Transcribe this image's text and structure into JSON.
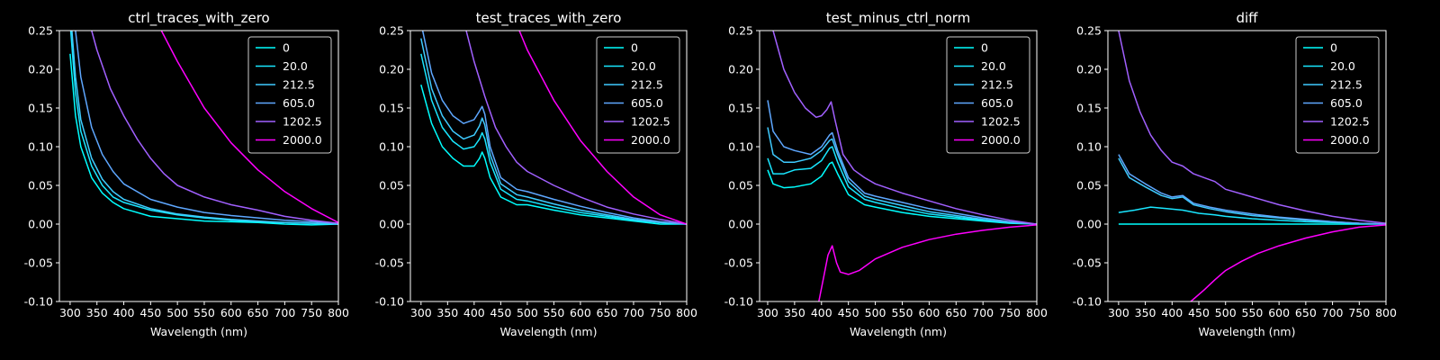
{
  "figure": {
    "background": "#000000",
    "foreground": "#ffffff"
  },
  "chart_data": [
    {
      "type": "line",
      "title": "ctrl_traces_with_zero",
      "xlabel": "Wavelength (nm)",
      "ylabel": "",
      "xlim": [
        280,
        800
      ],
      "ylim": [
        -0.1,
        0.25
      ],
      "xticks": [
        300,
        350,
        400,
        450,
        500,
        550,
        600,
        650,
        700,
        750,
        800
      ],
      "yticks": [
        -0.1,
        -0.05,
        0.0,
        0.05,
        0.1,
        0.15,
        0.2,
        0.25
      ],
      "legend": "top-right",
      "series": [
        {
          "name": "0",
          "color": "#00ffff",
          "x": [
            300,
            310,
            320,
            340,
            360,
            380,
            400,
            450,
            500,
            550,
            600,
            650,
            700,
            750,
            800
          ],
          "y": [
            0.22,
            0.14,
            0.1,
            0.06,
            0.04,
            0.028,
            0.02,
            0.01,
            0.007,
            0.004,
            0.003,
            0.002,
            0.0,
            -0.001,
            0.0
          ]
        },
        {
          "name": "20.0",
          "color": "#19e6ff",
          "x": [
            300,
            310,
            320,
            340,
            360,
            380,
            400,
            450,
            500,
            550,
            600,
            650,
            700,
            750,
            800
          ],
          "y": [
            0.26,
            0.17,
            0.12,
            0.075,
            0.05,
            0.035,
            0.028,
            0.018,
            0.012,
            0.008,
            0.005,
            0.003,
            0.002,
            0.001,
            0.0
          ]
        },
        {
          "name": "212.5",
          "color": "#3fcbff",
          "x": [
            300,
            310,
            320,
            340,
            360,
            380,
            400,
            450,
            500,
            550,
            600,
            650,
            700,
            750,
            800
          ],
          "y": [
            0.28,
            0.19,
            0.135,
            0.085,
            0.058,
            0.042,
            0.032,
            0.02,
            0.013,
            0.009,
            0.006,
            0.004,
            0.002,
            0.001,
            0.0
          ]
        },
        {
          "name": "605.0",
          "color": "#5ea7ff",
          "x": [
            300,
            310,
            320,
            340,
            360,
            380,
            400,
            450,
            500,
            550,
            600,
            650,
            700,
            750,
            800
          ],
          "y": [
            0.35,
            0.25,
            0.19,
            0.125,
            0.09,
            0.068,
            0.052,
            0.032,
            0.022,
            0.015,
            0.011,
            0.008,
            0.005,
            0.003,
            0.001
          ]
        },
        {
          "name": "1202.5",
          "color": "#a160ff",
          "x": [
            340,
            350,
            375,
            400,
            425,
            450,
            475,
            500,
            550,
            600,
            650,
            700,
            750,
            800
          ],
          "y": [
            0.25,
            0.225,
            0.175,
            0.14,
            0.11,
            0.085,
            0.065,
            0.05,
            0.035,
            0.025,
            0.018,
            0.01,
            0.005,
            0.001
          ]
        },
        {
          "name": "2000.0",
          "color": "#ff00ff",
          "x": [
            470,
            500,
            550,
            600,
            650,
            700,
            750,
            800
          ],
          "y": [
            0.25,
            0.21,
            0.15,
            0.105,
            0.07,
            0.042,
            0.02,
            0.002
          ]
        }
      ]
    },
    {
      "type": "line",
      "title": "test_traces_with_zero",
      "xlabel": "Wavelength (nm)",
      "ylabel": "",
      "xlim": [
        280,
        800
      ],
      "ylim": [
        -0.1,
        0.25
      ],
      "xticks": [
        300,
        350,
        400,
        450,
        500,
        550,
        600,
        650,
        700,
        750,
        800
      ],
      "yticks": [
        -0.1,
        -0.05,
        0.0,
        0.05,
        0.1,
        0.15,
        0.2,
        0.25
      ],
      "legend": "top-right",
      "series": [
        {
          "name": "0",
          "color": "#00ffff",
          "x": [
            300,
            320,
            340,
            360,
            380,
            400,
            410,
            415,
            420,
            430,
            450,
            480,
            500,
            550,
            600,
            650,
            700,
            750,
            800
          ],
          "y": [
            0.18,
            0.13,
            0.1,
            0.085,
            0.075,
            0.075,
            0.085,
            0.093,
            0.085,
            0.06,
            0.035,
            0.025,
            0.025,
            0.018,
            0.012,
            0.008,
            0.004,
            0.0,
            0.0
          ]
        },
        {
          "name": "20.0",
          "color": "#19e6ff",
          "x": [
            300,
            320,
            340,
            360,
            380,
            400,
            410,
            415,
            420,
            430,
            450,
            480,
            500,
            550,
            600,
            650,
            700,
            750,
            800
          ],
          "y": [
            0.22,
            0.16,
            0.125,
            0.107,
            0.097,
            0.1,
            0.11,
            0.118,
            0.11,
            0.08,
            0.045,
            0.032,
            0.03,
            0.022,
            0.015,
            0.01,
            0.005,
            0.002,
            0.0
          ]
        },
        {
          "name": "212.5",
          "color": "#3fcbff",
          "x": [
            300,
            320,
            340,
            360,
            380,
            400,
            410,
            415,
            420,
            430,
            450,
            480,
            500,
            550,
            600,
            650,
            700,
            750,
            800
          ],
          "y": [
            0.24,
            0.175,
            0.14,
            0.12,
            0.11,
            0.115,
            0.127,
            0.137,
            0.128,
            0.09,
            0.052,
            0.038,
            0.035,
            0.026,
            0.018,
            0.012,
            0.006,
            0.002,
            0.0
          ]
        },
        {
          "name": "605.0",
          "color": "#5ea7ff",
          "x": [
            300,
            320,
            340,
            360,
            380,
            400,
            410,
            415,
            420,
            430,
            450,
            480,
            500,
            550,
            600,
            650,
            700,
            750,
            800
          ],
          "y": [
            0.26,
            0.195,
            0.16,
            0.14,
            0.13,
            0.135,
            0.146,
            0.152,
            0.142,
            0.1,
            0.06,
            0.045,
            0.042,
            0.032,
            0.023,
            0.015,
            0.008,
            0.003,
            0.0
          ]
        },
        {
          "name": "1202.5",
          "color": "#a160ff",
          "x": [
            385,
            400,
            420,
            440,
            460,
            480,
            500,
            550,
            600,
            650,
            700,
            750,
            800
          ],
          "y": [
            0.25,
            0.21,
            0.165,
            0.125,
            0.1,
            0.08,
            0.068,
            0.05,
            0.035,
            0.022,
            0.013,
            0.006,
            0.0
          ]
        },
        {
          "name": "2000.0",
          "color": "#ff00ff",
          "x": [
            485,
            500,
            550,
            600,
            650,
            700,
            750,
            800
          ],
          "y": [
            0.25,
            0.225,
            0.16,
            0.108,
            0.068,
            0.035,
            0.012,
            0.0
          ]
        }
      ]
    },
    {
      "type": "line",
      "title": "test_minus_ctrl_norm",
      "xlabel": "Wavelength (nm)",
      "ylabel": "",
      "xlim": [
        285,
        800
      ],
      "ylim": [
        -0.1,
        0.25
      ],
      "xticks": [
        300,
        350,
        400,
        450,
        500,
        550,
        600,
        650,
        700,
        750,
        800
      ],
      "yticks": [
        -0.1,
        -0.05,
        0.0,
        0.05,
        0.1,
        0.15,
        0.2,
        0.25
      ],
      "legend": "top-right",
      "series": [
        {
          "name": "0",
          "color": "#00ffff",
          "x": [
            300,
            310,
            330,
            350,
            380,
            400,
            415,
            420,
            430,
            450,
            480,
            500,
            550,
            600,
            650,
            700,
            750,
            800
          ],
          "y": [
            0.07,
            0.052,
            0.047,
            0.048,
            0.052,
            0.062,
            0.078,
            0.08,
            0.065,
            0.038,
            0.025,
            0.022,
            0.015,
            0.01,
            0.007,
            0.004,
            0.001,
            0.0
          ]
        },
        {
          "name": "20.0",
          "color": "#19e6ff",
          "x": [
            300,
            310,
            330,
            350,
            380,
            400,
            415,
            420,
            430,
            450,
            480,
            500,
            550,
            600,
            650,
            700,
            750,
            800
          ],
          "y": [
            0.085,
            0.065,
            0.065,
            0.07,
            0.072,
            0.082,
            0.098,
            0.1,
            0.08,
            0.048,
            0.032,
            0.028,
            0.02,
            0.013,
            0.009,
            0.005,
            0.002,
            0.0
          ]
        },
        {
          "name": "212.5",
          "color": "#3fcbff",
          "x": [
            300,
            310,
            330,
            350,
            380,
            400,
            415,
            420,
            430,
            450,
            480,
            500,
            550,
            600,
            650,
            700,
            750,
            800
          ],
          "y": [
            0.125,
            0.09,
            0.08,
            0.08,
            0.085,
            0.095,
            0.108,
            0.11,
            0.09,
            0.055,
            0.036,
            0.032,
            0.024,
            0.016,
            0.011,
            0.006,
            0.002,
            0.0
          ]
        },
        {
          "name": "605.0",
          "color": "#5ea7ff",
          "x": [
            300,
            310,
            330,
            350,
            380,
            400,
            415,
            420,
            430,
            450,
            480,
            500,
            550,
            600,
            650,
            700,
            750,
            800
          ],
          "y": [
            0.16,
            0.12,
            0.1,
            0.095,
            0.09,
            0.1,
            0.115,
            0.118,
            0.095,
            0.06,
            0.04,
            0.036,
            0.028,
            0.02,
            0.014,
            0.008,
            0.003,
            0.0
          ]
        },
        {
          "name": "1202.5",
          "color": "#a160ff",
          "x": [
            310,
            330,
            350,
            370,
            390,
            400,
            410,
            418,
            425,
            440,
            460,
            480,
            500,
            550,
            600,
            650,
            700,
            750,
            800
          ],
          "y": [
            0.25,
            0.2,
            0.17,
            0.15,
            0.138,
            0.14,
            0.148,
            0.158,
            0.135,
            0.09,
            0.07,
            0.06,
            0.052,
            0.04,
            0.03,
            0.02,
            0.012,
            0.005,
            0.0
          ]
        },
        {
          "name": "2000.0",
          "color": "#ff00ff",
          "x": [
            395,
            405,
            412,
            420,
            428,
            435,
            450,
            470,
            500,
            550,
            600,
            650,
            700,
            750,
            800
          ],
          "y": [
            -0.1,
            -0.065,
            -0.04,
            -0.028,
            -0.05,
            -0.062,
            -0.065,
            -0.06,
            -0.045,
            -0.03,
            -0.02,
            -0.013,
            -0.008,
            -0.004,
            -0.001
          ]
        }
      ]
    },
    {
      "type": "line",
      "title": "diff",
      "xlabel": "Wavelength (nm)",
      "ylabel": "",
      "xlim": [
        280,
        800
      ],
      "ylim": [
        -0.1,
        0.25
      ],
      "xticks": [
        300,
        350,
        400,
        450,
        500,
        550,
        600,
        650,
        700,
        750,
        800
      ],
      "yticks": [
        -0.1,
        -0.05,
        0.0,
        0.05,
        0.1,
        0.15,
        0.2,
        0.25
      ],
      "legend": "top-right",
      "series": [
        {
          "name": "0",
          "color": "#00ffff",
          "x": [
            300,
            800
          ],
          "y": [
            0.0,
            0.0
          ]
        },
        {
          "name": "20.0",
          "color": "#19e6ff",
          "x": [
            300,
            330,
            360,
            390,
            420,
            450,
            480,
            500,
            550,
            600,
            650,
            700,
            750,
            800
          ],
          "y": [
            0.015,
            0.018,
            0.022,
            0.02,
            0.018,
            0.014,
            0.012,
            0.01,
            0.007,
            0.005,
            0.003,
            0.002,
            0.001,
            0.0
          ]
        },
        {
          "name": "212.5",
          "color": "#3fcbff",
          "x": [
            300,
            320,
            350,
            380,
            400,
            420,
            440,
            470,
            500,
            550,
            600,
            650,
            700,
            750,
            800
          ],
          "y": [
            0.085,
            0.06,
            0.048,
            0.037,
            0.033,
            0.035,
            0.025,
            0.02,
            0.016,
            0.011,
            0.008,
            0.005,
            0.003,
            0.001,
            0.0
          ]
        },
        {
          "name": "605.0",
          "color": "#5ea7ff",
          "x": [
            300,
            320,
            350,
            380,
            400,
            420,
            440,
            470,
            500,
            550,
            600,
            650,
            700,
            750,
            800
          ],
          "y": [
            0.09,
            0.065,
            0.052,
            0.04,
            0.035,
            0.037,
            0.027,
            0.022,
            0.018,
            0.013,
            0.009,
            0.006,
            0.003,
            0.001,
            0.0
          ]
        },
        {
          "name": "1202.5",
          "color": "#a160ff",
          "x": [
            300,
            320,
            340,
            360,
            380,
            400,
            420,
            440,
            460,
            480,
            500,
            550,
            600,
            650,
            700,
            750,
            800
          ],
          "y": [
            0.25,
            0.185,
            0.145,
            0.115,
            0.095,
            0.08,
            0.075,
            0.065,
            0.06,
            0.055,
            0.045,
            0.035,
            0.025,
            0.017,
            0.01,
            0.005,
            0.001
          ]
        },
        {
          "name": "2000.0",
          "color": "#ff00ff",
          "x": [
            435,
            460,
            480,
            500,
            530,
            560,
            600,
            650,
            700,
            750,
            800
          ],
          "y": [
            -0.1,
            -0.085,
            -0.072,
            -0.06,
            -0.048,
            -0.038,
            -0.028,
            -0.018,
            -0.01,
            -0.004,
            -0.001
          ]
        }
      ]
    }
  ]
}
